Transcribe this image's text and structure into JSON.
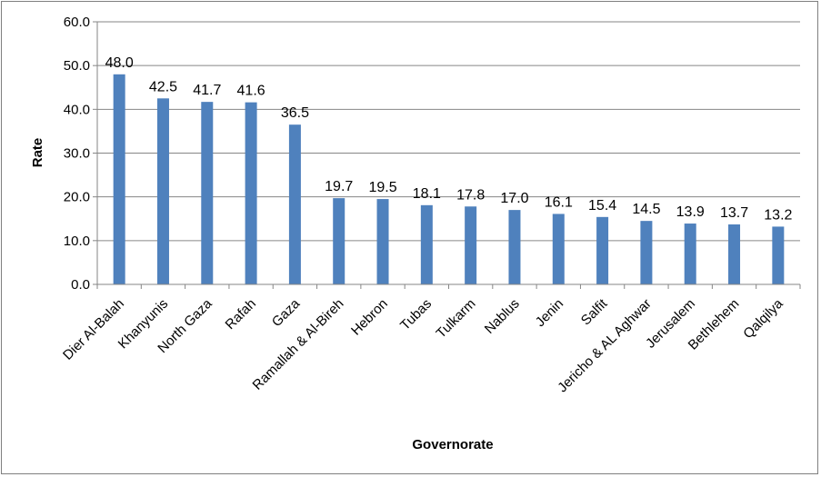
{
  "chart_data": {
    "type": "bar",
    "title": "",
    "xlabel": "Governorate",
    "ylabel": "Rate",
    "ylim": [
      0,
      60
    ],
    "yticks": [
      "0.0",
      "10.0",
      "20.0",
      "30.0",
      "40.0",
      "50.0",
      "60.0"
    ],
    "grid": true,
    "legend": "none",
    "bar_color": "#4f81bd",
    "categories": [
      "Dier Al-Balah",
      "Khanyunis",
      "North Gaza",
      "Rafah",
      "Gaza",
      "Ramallah & Al-Bireh",
      "Hebron",
      "Tubas",
      "Tulkarm",
      "Nablus",
      "Jenin",
      "Salfit",
      "Jericho & AL Aghwar",
      "Jerusalem",
      "Bethlehem",
      "Qalqilya"
    ],
    "values": [
      48.0,
      42.5,
      41.7,
      41.6,
      36.5,
      19.7,
      19.5,
      18.1,
      17.8,
      17.0,
      16.1,
      15.4,
      14.5,
      13.9,
      13.7,
      13.2
    ],
    "data_labels": [
      "48.0",
      "42.5",
      "41.7",
      "41.6",
      "36.5",
      "19.7",
      "19.5",
      "18.1",
      "17.8",
      "17.0",
      "16.1",
      "15.4",
      "14.5",
      "13.9",
      "13.7",
      "13.2"
    ]
  }
}
